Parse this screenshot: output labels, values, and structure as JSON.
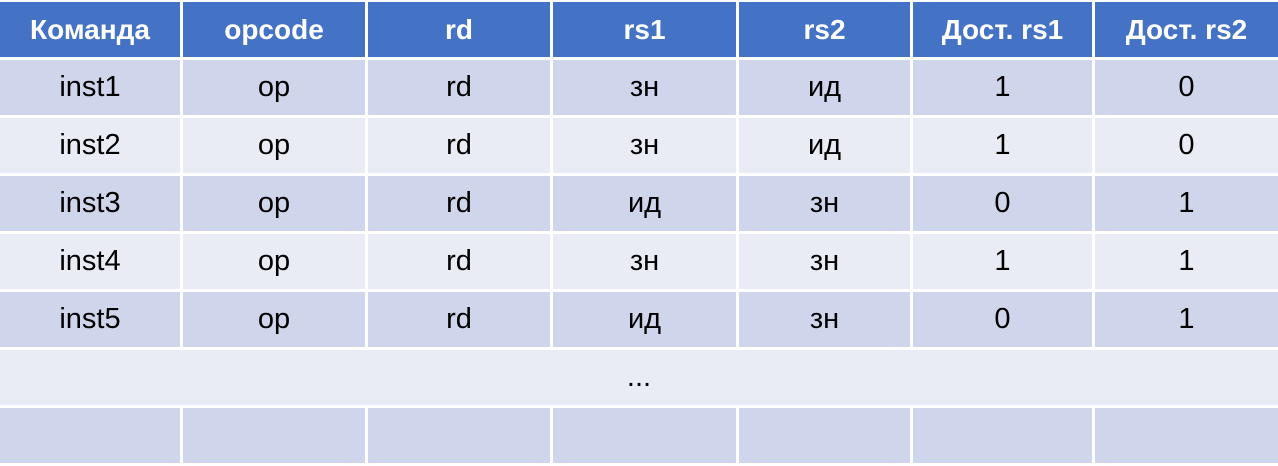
{
  "chart_data": {
    "type": "table",
    "title": "",
    "headers": [
      "Команда",
      "opcode",
      "rd",
      "rs1",
      "rs2",
      "Дост. rs1",
      "Дост. rs2"
    ],
    "rows": [
      [
        "inst1",
        "op",
        "rd",
        "зн",
        "ид",
        "1",
        "0"
      ],
      [
        "inst2",
        "op",
        "rd",
        "зн",
        "ид",
        "1",
        "0"
      ],
      [
        "inst3",
        "op",
        "rd",
        "ид",
        "зн",
        "0",
        "1"
      ],
      [
        "inst4",
        "op",
        "rd",
        "зн",
        "зн",
        "1",
        "1"
      ],
      [
        "inst5",
        "op",
        "rd",
        "ид",
        "зн",
        "0",
        "1"
      ]
    ],
    "ellipsis_label": "...",
    "trailing_empty_row_cells": 7,
    "layout_hints": {
      "banded_rows": true,
      "ellipsis_row_merged": true,
      "grid": "white separators between cells"
    }
  },
  "colors": {
    "header_bg": "#4472C4",
    "header_text": "#FFFFFF",
    "band_dark": "#CFD5EA",
    "band_light": "#E9EBF5",
    "body_text": "#000000"
  }
}
